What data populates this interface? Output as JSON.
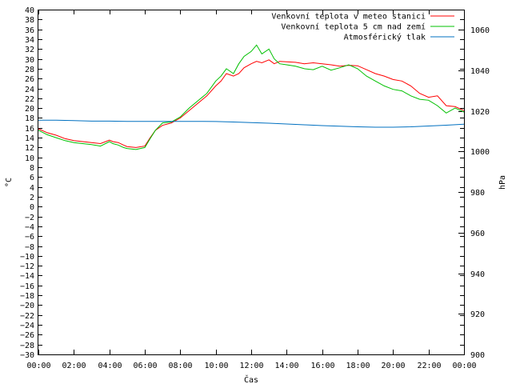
{
  "chart_data": {
    "type": "line",
    "title": "",
    "xlabel": "Čas",
    "ylabel_left": "°C",
    "ylabel_right": "hPa",
    "x_ticks": [
      "00:00",
      "02:00",
      "04:00",
      "06:00",
      "08:00",
      "10:00",
      "12:00",
      "14:00",
      "16:00",
      "18:00",
      "20:00",
      "22:00",
      "00:00"
    ],
    "y_left_range": [
      -30,
      40
    ],
    "y_left_step": 2,
    "y_right_range": [
      900,
      1070
    ],
    "y_right_ticks": [
      900,
      920,
      940,
      960,
      980,
      1000,
      1020,
      1040,
      1060
    ],
    "x_range_hours": [
      0,
      24
    ],
    "grid": false,
    "legend_position": "top-right",
    "series": [
      {
        "name": "Venkovní teplota v meteo stanici",
        "color": "#ff0000",
        "axis": "left",
        "x": [
          0,
          0.5,
          1,
          1.5,
          2,
          2.5,
          3,
          3.5,
          4,
          4.2,
          4.5,
          4.8,
          5,
          5.5,
          6,
          6.3,
          6.6,
          7,
          7.5,
          8,
          8.5,
          9,
          9.5,
          10,
          10.3,
          10.6,
          11,
          11.3,
          11.6,
          12,
          12.3,
          12.6,
          13,
          13.3,
          13.6,
          14,
          14.5,
          15,
          15.5,
          16,
          16.5,
          17,
          17.5,
          18,
          18.5,
          19,
          19.5,
          20,
          20.5,
          21,
          21.5,
          22,
          22.5,
          23,
          23.5,
          24
        ],
        "y": [
          15.8,
          15.0,
          14.5,
          13.8,
          13.4,
          13.2,
          13.0,
          12.8,
          13.5,
          13.2,
          13.0,
          12.5,
          12.2,
          12.0,
          12.3,
          14.0,
          15.5,
          16.5,
          17.0,
          18.0,
          19.5,
          21.0,
          22.5,
          24.5,
          25.5,
          27.0,
          26.5,
          27.0,
          28.2,
          29.0,
          29.5,
          29.2,
          29.8,
          29.0,
          29.5,
          29.4,
          29.3,
          29.0,
          29.2,
          29.0,
          28.8,
          28.5,
          28.7,
          28.6,
          27.8,
          27.0,
          26.5,
          25.8,
          25.5,
          24.5,
          23.0,
          22.2,
          22.5,
          20.5,
          20.3,
          19.5
        ]
      },
      {
        "name": "Venkovní teplota 5 cm nad zemí",
        "color": "#00c000",
        "axis": "left",
        "x": [
          0,
          0.5,
          1,
          1.5,
          2,
          2.5,
          3,
          3.5,
          4,
          4.2,
          4.5,
          4.8,
          5,
          5.5,
          6,
          6.3,
          6.6,
          7,
          7.5,
          8,
          8.5,
          9,
          9.5,
          10,
          10.3,
          10.6,
          11,
          11.3,
          11.6,
          12,
          12.3,
          12.6,
          13,
          13.3,
          13.6,
          14,
          14.5,
          15,
          15.5,
          16,
          16.5,
          17,
          17.5,
          18,
          18.5,
          19,
          19.5,
          20,
          20.5,
          21,
          21.5,
          22,
          22.5,
          23,
          23.5,
          24
        ],
        "y": [
          15.5,
          14.6,
          14.0,
          13.4,
          13.0,
          12.8,
          12.6,
          12.3,
          13.2,
          12.8,
          12.5,
          12.0,
          11.8,
          11.6,
          12.0,
          13.8,
          15.5,
          17.0,
          17.2,
          18.2,
          20.0,
          21.5,
          23.0,
          25.5,
          26.5,
          28.0,
          27.0,
          29.0,
          30.5,
          31.5,
          32.8,
          31.0,
          32.0,
          30.0,
          29.0,
          28.8,
          28.5,
          28.0,
          27.8,
          28.5,
          27.7,
          28.2,
          28.8,
          28.0,
          26.5,
          25.5,
          24.5,
          23.8,
          23.5,
          22.5,
          21.8,
          21.6,
          20.5,
          19.0,
          20.0,
          19.2
        ]
      },
      {
        "name": "Atmosférický tlak",
        "color": "#0070c0",
        "axis": "right",
        "x": [
          0,
          1,
          2,
          3,
          4,
          5,
          6,
          7,
          8,
          9,
          10,
          11,
          12,
          13,
          14,
          15,
          16,
          17,
          18,
          19,
          20,
          21,
          22,
          23,
          24
        ],
        "y": [
          1015.5,
          1015.5,
          1015.3,
          1015.0,
          1015.0,
          1014.9,
          1014.9,
          1014.9,
          1014.9,
          1014.9,
          1014.8,
          1014.6,
          1014.3,
          1014.0,
          1013.6,
          1013.2,
          1012.8,
          1012.5,
          1012.2,
          1012.0,
          1012.0,
          1012.2,
          1012.6,
          1013.0,
          1013.5
        ]
      }
    ]
  }
}
